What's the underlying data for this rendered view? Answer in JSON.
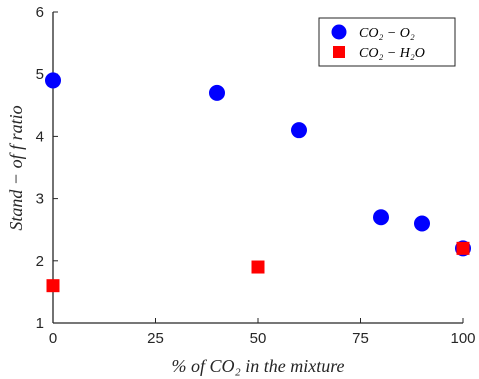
{
  "chart_data": {
    "type": "scatter",
    "title": "",
    "xlabel": "% of CO₂ in the mixture",
    "ylabel": "Stand − of f ratio",
    "xlim": [
      0,
      100
    ],
    "ylim": [
      1,
      6
    ],
    "xticks": [
      0,
      25,
      50,
      75,
      100
    ],
    "yticks": [
      1,
      2,
      3,
      4,
      5,
      6
    ],
    "grid": false,
    "legend_position": "top-right",
    "series": [
      {
        "name": "CO₂ − O₂",
        "marker": "circle",
        "color": "#0000ff",
        "x": [
          0,
          40,
          60,
          80,
          90,
          100
        ],
        "y": [
          4.9,
          4.7,
          4.1,
          2.7,
          2.6,
          2.2
        ]
      },
      {
        "name": "CO₂ − H₂O",
        "marker": "square",
        "color": "#ff0000",
        "x": [
          0,
          50,
          100
        ],
        "y": [
          1.6,
          1.9,
          2.2
        ]
      }
    ]
  }
}
